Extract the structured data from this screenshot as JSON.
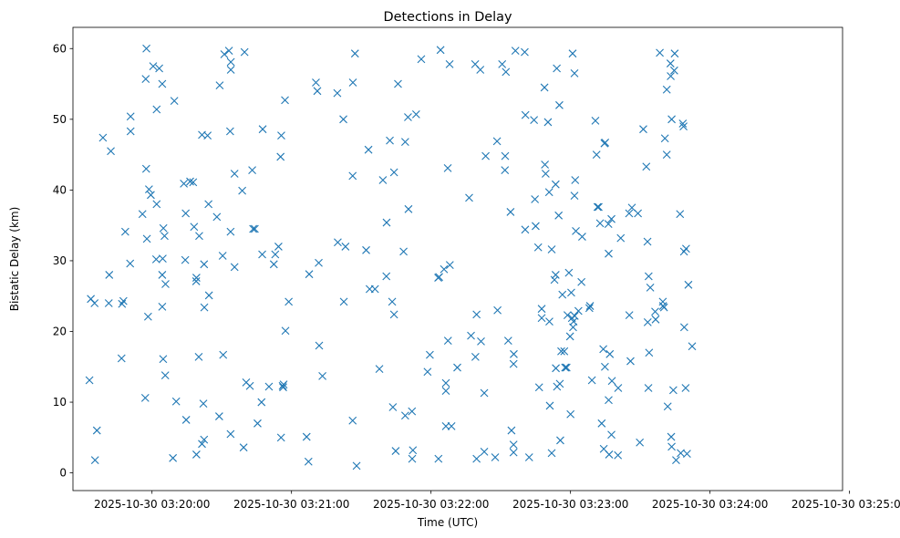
{
  "chart_data": {
    "type": "scatter",
    "title": "Detections in Delay",
    "xlabel": "Time (UTC)",
    "ylabel": "Bistatic Delay (km)",
    "x_unit": "seconds after 2025-10-30 03:19:30",
    "xlim": [
      -4,
      327
    ],
    "ylim": [
      -2.5,
      63
    ],
    "marker": "x",
    "marker_color": "#1f77b4",
    "xticks": [
      {
        "value": 30,
        "label": "2025-10-30 03:20:00"
      },
      {
        "value": 90,
        "label": "2025-10-30 03:21:00"
      },
      {
        "value": 150,
        "label": "2025-10-30 03:22:00"
      },
      {
        "value": 210,
        "label": "2025-10-30 03:23:00"
      },
      {
        "value": 270,
        "label": "2025-10-30 03:24:00"
      },
      {
        "value": 330,
        "label": "2025-10-30 03:25:00"
      }
    ],
    "yticks": [
      {
        "value": 0,
        "label": "0"
      },
      {
        "value": 10,
        "label": "10"
      },
      {
        "value": 20,
        "label": "20"
      },
      {
        "value": 30,
        "label": "30"
      },
      {
        "value": 40,
        "label": "40"
      },
      {
        "value": 50,
        "label": "50"
      },
      {
        "value": 60,
        "label": "60"
      }
    ],
    "series": [
      {
        "name": "Detections",
        "points": [
          [
            27.6,
            60
          ],
          [
            3.7,
            24.6
          ],
          [
            5.3,
            24
          ],
          [
            6.3,
            6
          ],
          [
            5.5,
            1.8
          ],
          [
            3.1,
            13.1
          ],
          [
            8.9,
            47.4
          ],
          [
            11.6,
            28
          ],
          [
            11.4,
            24
          ],
          [
            12.3,
            45.5
          ],
          [
            17.1,
            23.9
          ],
          [
            17.7,
            24.3
          ],
          [
            16.9,
            16.2
          ],
          [
            18.5,
            34.1
          ],
          [
            20.6,
            29.6
          ],
          [
            20.8,
            48.3
          ],
          [
            20.8,
            50.4
          ],
          [
            25.9,
            36.6
          ],
          [
            27.1,
            10.6
          ],
          [
            27.3,
            55.7
          ],
          [
            27.5,
            43
          ],
          [
            27.8,
            33.1
          ],
          [
            28.3,
            22.1
          ],
          [
            28.7,
            40.1
          ],
          [
            29.5,
            39.3
          ],
          [
            30.5,
            57.5
          ],
          [
            32,
            38
          ],
          [
            32,
            51.4
          ],
          [
            31.8,
            30.2
          ],
          [
            33.1,
            57.2
          ],
          [
            34.4,
            55
          ],
          [
            34.6,
            30.3
          ],
          [
            34.8,
            16.1
          ],
          [
            34.4,
            23.5
          ],
          [
            34.4,
            28
          ],
          [
            34.9,
            34.6
          ],
          [
            35.4,
            33.5
          ],
          [
            35.8,
            26.7
          ],
          [
            35.7,
            13.8
          ],
          [
            39.6,
            52.6
          ],
          [
            39,
            2.1
          ],
          [
            40.4,
            10.1
          ],
          [
            43.7,
            40.9
          ],
          [
            44.5,
            36.7
          ],
          [
            44.3,
            30.1
          ],
          [
            44.7,
            7.5
          ],
          [
            46.4,
            41.2
          ],
          [
            47.7,
            41.1
          ],
          [
            48.1,
            34.8
          ],
          [
            49,
            27.1
          ],
          [
            49.1,
            27.6
          ],
          [
            49.1,
            2.6
          ],
          [
            50.3,
            33.5
          ],
          [
            50.1,
            16.4
          ],
          [
            51.5,
            47.8
          ],
          [
            51.5,
            4.1
          ],
          [
            52.4,
            4.7
          ],
          [
            52.1,
            9.8
          ],
          [
            52.4,
            29.5
          ],
          [
            52.5,
            23.4
          ],
          [
            53.9,
            47.7
          ],
          [
            54.3,
            38
          ],
          [
            54.5,
            25.1
          ],
          [
            57.9,
            36.2
          ],
          [
            58.9,
            8
          ],
          [
            59.1,
            54.8
          ],
          [
            60.4,
            30.7
          ],
          [
            60.6,
            16.7
          ],
          [
            61.1,
            59.2
          ],
          [
            63.1,
            59.7
          ],
          [
            63.9,
            58.1
          ],
          [
            63.9,
            57
          ],
          [
            63.6,
            48.3
          ],
          [
            63.8,
            34.1
          ],
          [
            63.8,
            5.5
          ],
          [
            65.5,
            29.1
          ],
          [
            65.5,
            42.3
          ],
          [
            68.8,
            39.9
          ],
          [
            69.8,
            59.5
          ],
          [
            69.4,
            3.6
          ],
          [
            70.5,
            12.8
          ],
          [
            72.1,
            12.3
          ],
          [
            73.1,
            42.8
          ],
          [
            73.5,
            34.5
          ],
          [
            74.2,
            34.5
          ],
          [
            75.4,
            7
          ],
          [
            77.1,
            10
          ],
          [
            77.6,
            48.6
          ],
          [
            77.4,
            30.9
          ],
          [
            80.3,
            12.2
          ],
          [
            82.4,
            29.5
          ],
          [
            83,
            30.9
          ],
          [
            84.4,
            32
          ],
          [
            85.6,
            47.7
          ],
          [
            85.3,
            44.7
          ],
          [
            85.5,
            5
          ],
          [
            86.2,
            12.3
          ],
          [
            86.6,
            12.5
          ],
          [
            86.4,
            12.1
          ],
          [
            87.2,
            52.7
          ],
          [
            87.4,
            20.1
          ],
          [
            88.8,
            24.2
          ],
          [
            96.5,
            5.1
          ],
          [
            97.3,
            1.6
          ],
          [
            97.6,
            28.1
          ],
          [
            100.5,
            55.2
          ],
          [
            101.1,
            54
          ],
          [
            101.7,
            29.7
          ],
          [
            101.9,
            18
          ],
          [
            103.3,
            13.7
          ],
          [
            109.7,
            53.7
          ],
          [
            109.9,
            32.6
          ],
          [
            112.3,
            50
          ],
          [
            112.5,
            24.2
          ],
          [
            113.2,
            32
          ],
          [
            116.4,
            55.2
          ],
          [
            116.3,
            42
          ],
          [
            116.3,
            7.4
          ],
          [
            117.3,
            59.3
          ],
          [
            118,
            1
          ],
          [
            122.1,
            31.5
          ],
          [
            123.1,
            45.7
          ],
          [
            123.6,
            26
          ],
          [
            125.9,
            26
          ],
          [
            127.8,
            14.7
          ],
          [
            129.3,
            41.4
          ],
          [
            130.8,
            27.8
          ],
          [
            130.9,
            35.4
          ],
          [
            132.3,
            47
          ],
          [
            133.3,
            24.2
          ],
          [
            133.6,
            9.3
          ],
          [
            134.1,
            42.5
          ],
          [
            134.1,
            22.4
          ],
          [
            134.8,
            3.1
          ],
          [
            135.8,
            55
          ],
          [
            138.2,
            31.3
          ],
          [
            138.9,
            46.8
          ],
          [
            138.9,
            8.1
          ],
          [
            140.3,
            37.3
          ],
          [
            140.1,
            50.3
          ],
          [
            141.8,
            8.7
          ],
          [
            142.2,
            3.2
          ],
          [
            141.9,
            2
          ],
          [
            143.6,
            50.7
          ],
          [
            145.8,
            58.5
          ],
          [
            148.5,
            14.3
          ],
          [
            149.5,
            16.7
          ],
          [
            153.1,
            27.6
          ],
          [
            153.5,
            27.7
          ],
          [
            153.2,
            2
          ],
          [
            154.1,
            59.8
          ],
          [
            155.6,
            28.8
          ],
          [
            156.4,
            12.7
          ],
          [
            156.4,
            11.6
          ],
          [
            156.4,
            6.6
          ],
          [
            157.3,
            18.7
          ],
          [
            157.2,
            43.1
          ],
          [
            158,
            57.8
          ],
          [
            158.1,
            29.4
          ],
          [
            158.8,
            6.6
          ],
          [
            161.3,
            14.9
          ],
          [
            166.4,
            38.9
          ],
          [
            167.2,
            19.4
          ],
          [
            169,
            57.8
          ],
          [
            169.1,
            16.4
          ],
          [
            169.6,
            22.4
          ],
          [
            169.6,
            2
          ],
          [
            171.2,
            57
          ],
          [
            171.5,
            18.6
          ],
          [
            172.9,
            11.3
          ],
          [
            172.9,
            3
          ],
          [
            173.5,
            44.8
          ],
          [
            177.6,
            2.2
          ],
          [
            178.4,
            46.9
          ],
          [
            178.6,
            23
          ],
          [
            180.6,
            57.8
          ],
          [
            182.2,
            56.7
          ],
          [
            181.9,
            44.8
          ],
          [
            181.8,
            42.8
          ],
          [
            183.2,
            18.7
          ],
          [
            184.2,
            36.9
          ],
          [
            184.6,
            6
          ],
          [
            185.6,
            16.8
          ],
          [
            185.5,
            15.4
          ],
          [
            185.5,
            4
          ],
          [
            185.5,
            2.9
          ],
          [
            186.3,
            59.7
          ],
          [
            190.3,
            59.5
          ],
          [
            190.6,
            50.6
          ],
          [
            190.5,
            34.4
          ],
          [
            192.2,
            2.2
          ],
          [
            194.3,
            49.9
          ],
          [
            194.7,
            38.7
          ],
          [
            195,
            34.9
          ],
          [
            196.1,
            31.9
          ],
          [
            196.5,
            12.1
          ],
          [
            197.6,
            23.2
          ],
          [
            197.6,
            21.9
          ],
          [
            198.8,
            54.5
          ],
          [
            199,
            43.6
          ],
          [
            199.3,
            42.3
          ],
          [
            200.3,
            49.6
          ],
          [
            200.8,
            39.7
          ],
          [
            200.9,
            21.4
          ],
          [
            201.1,
            9.5
          ],
          [
            201.9,
            31.6
          ],
          [
            201.9,
            2.8
          ],
          [
            203.1,
            27.3
          ],
          [
            203.6,
            40.8
          ],
          [
            203.6,
            28
          ],
          [
            203.7,
            14.8
          ],
          [
            204.1,
            57.2
          ],
          [
            204.2,
            12.2
          ],
          [
            204.9,
            36.4
          ],
          [
            205.2,
            52
          ],
          [
            205.4,
            12.6
          ],
          [
            205.6,
            4.6
          ],
          [
            206,
            17.2
          ],
          [
            206.5,
            25.2
          ],
          [
            207.3,
            17.2
          ],
          [
            207.7,
            14.9
          ],
          [
            208.3,
            14.9
          ],
          [
            208.7,
            22.3
          ],
          [
            209.3,
            28.3
          ],
          [
            209.8,
            19.3
          ],
          [
            210,
            8.3
          ],
          [
            210.3,
            25.5
          ],
          [
            210.9,
            59.3
          ],
          [
            210.6,
            21.9
          ],
          [
            211.1,
            20.6
          ],
          [
            211.3,
            21.4
          ],
          [
            211.7,
            56.5
          ],
          [
            211.7,
            39.2
          ],
          [
            211.8,
            22.2
          ],
          [
            212,
            41.4
          ],
          [
            212.3,
            34.2
          ],
          [
            213.4,
            22.9
          ],
          [
            214.7,
            27
          ],
          [
            215,
            33.4
          ],
          [
            218.1,
            23.3
          ],
          [
            218.4,
            23.6
          ],
          [
            219.2,
            13.1
          ],
          [
            220.7,
            49.8
          ],
          [
            221.2,
            45
          ],
          [
            221.6,
            37.6
          ],
          [
            222.1,
            37.6
          ],
          [
            222.7,
            35.3
          ],
          [
            223.4,
            7
          ],
          [
            224.1,
            17.5
          ],
          [
            224.6,
            46.6
          ],
          [
            224.3,
            3.4
          ],
          [
            224.9,
            46.7
          ],
          [
            224.8,
            15
          ],
          [
            226.3,
            35.2
          ],
          [
            226.4,
            31
          ],
          [
            226.4,
            10.3
          ],
          [
            226.6,
            2.6
          ],
          [
            226.9,
            16.8
          ],
          [
            227.6,
            35.9
          ],
          [
            227.6,
            5.4
          ],
          [
            227.8,
            13
          ],
          [
            230.4,
            2.5
          ],
          [
            230.5,
            12
          ],
          [
            231.6,
            33.2
          ],
          [
            235.2,
            36.7
          ],
          [
            235.3,
            22.3
          ],
          [
            235.8,
            15.8
          ],
          [
            236.4,
            37.5
          ],
          [
            239,
            36.7
          ],
          [
            239.8,
            4.3
          ],
          [
            241.3,
            48.6
          ],
          [
            242.6,
            43.3
          ],
          [
            243.1,
            32.7
          ],
          [
            243.2,
            21.3
          ],
          [
            243.8,
            17
          ],
          [
            243.5,
            12
          ],
          [
            243.6,
            27.8
          ],
          [
            244.3,
            26.2
          ],
          [
            246.4,
            22.8
          ],
          [
            246.6,
            21.7
          ],
          [
            248.4,
            59.4
          ],
          [
            249.7,
            24.2
          ],
          [
            249.8,
            23.6
          ],
          [
            250.6,
            47.3
          ],
          [
            250.2,
            23.4
          ],
          [
            251.4,
            54.2
          ],
          [
            251.4,
            45
          ],
          [
            251.8,
            9.4
          ],
          [
            253,
            57.9
          ],
          [
            253.1,
            56.1
          ],
          [
            253.3,
            5.1
          ],
          [
            253.5,
            3.7
          ],
          [
            253.5,
            50
          ],
          [
            254.2,
            11.7
          ],
          [
            254.6,
            56.9
          ],
          [
            254.8,
            59.3
          ],
          [
            255.4,
            1.8
          ],
          [
            257.1,
            36.6
          ],
          [
            257.4,
            2.8
          ],
          [
            258.3,
            49.4
          ],
          [
            258.6,
            49
          ],
          [
            258.8,
            31.3
          ],
          [
            258.9,
            20.6
          ],
          [
            259.7,
            31.7
          ],
          [
            259.5,
            12
          ],
          [
            260.1,
            2.7
          ],
          [
            260.7,
            26.6
          ],
          [
            262.3,
            17.9
          ]
        ]
      }
    ]
  }
}
